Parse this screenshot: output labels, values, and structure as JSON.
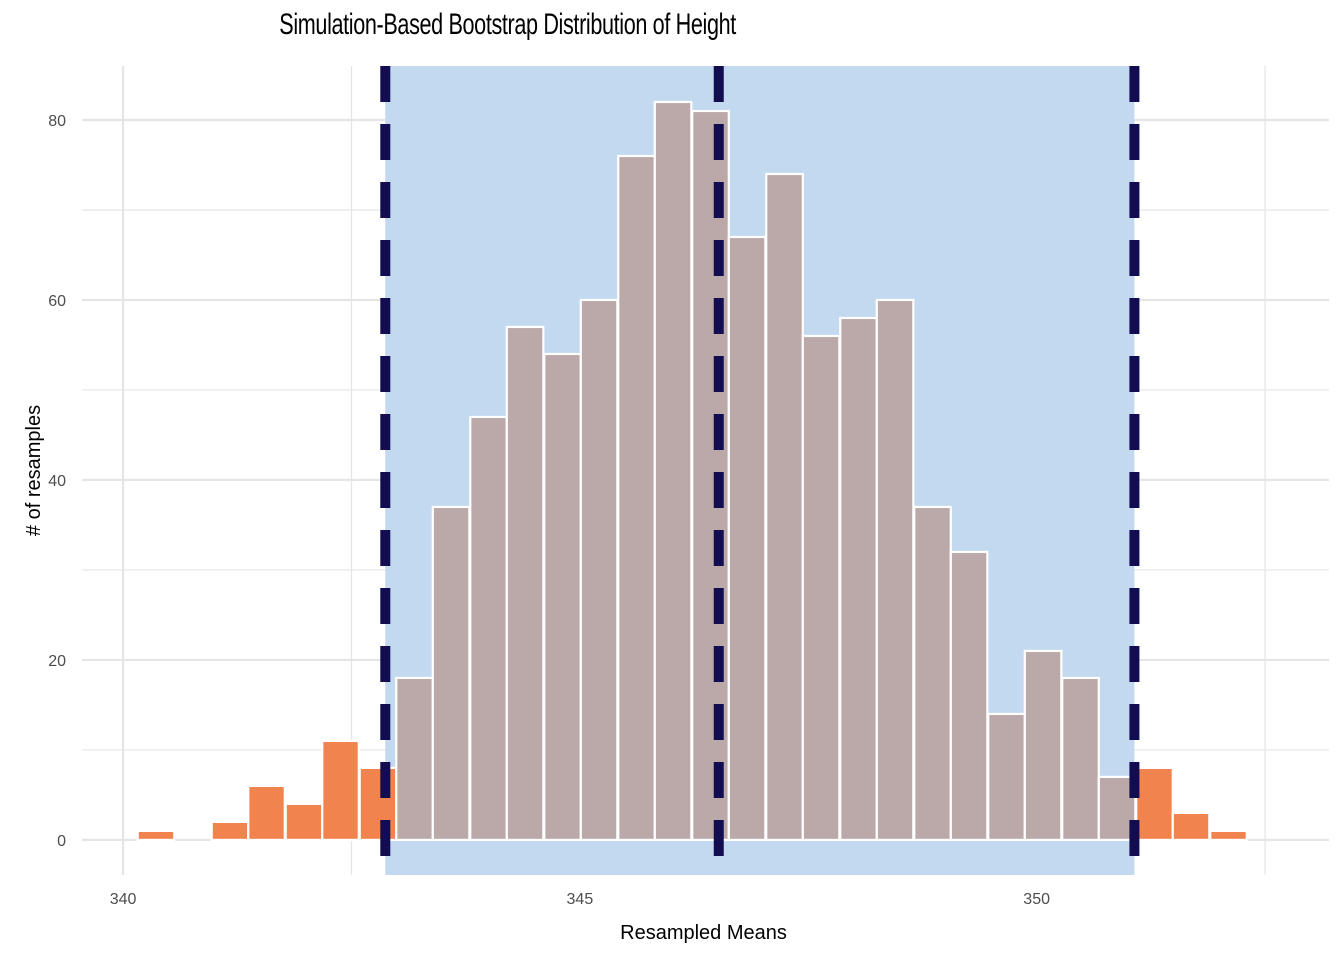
{
  "chart_data": {
    "type": "bar",
    "title": "Simulation-Based Bootstrap Distribution of Height",
    "xlabel": "Resampled Means",
    "ylabel": "# of resamples",
    "xlim": [
      339.55,
      353.2
    ],
    "ylim": [
      -3.9,
      86
    ],
    "x_ticks": [
      340,
      345,
      350
    ],
    "y_ticks": [
      0,
      20,
      40,
      60,
      80
    ],
    "grid": true,
    "bin_width": 0.4,
    "bins": {
      "centers": [
        340.36,
        340.76,
        341.17,
        341.57,
        341.98,
        342.38,
        342.79,
        343.19,
        343.59,
        344.0,
        344.4,
        344.81,
        345.21,
        345.62,
        346.02,
        346.43,
        346.83,
        347.24,
        347.64,
        348.05,
        348.45,
        348.86,
        349.26,
        349.67,
        350.07,
        350.48,
        350.88,
        351.29,
        351.69,
        352.1,
        352.5
      ],
      "counts": [
        1,
        0,
        2,
        6,
        4,
        11,
        8,
        18,
        37,
        47,
        57,
        54,
        60,
        76,
        82,
        81,
        67,
        74,
        56,
        58,
        60,
        37,
        32,
        14,
        21,
        18,
        7,
        8,
        3,
        1,
        0
      ]
    },
    "confidence_interval": {
      "lower": 342.87,
      "upper": 351.07,
      "mean": 346.52
    },
    "colors": {
      "bar_outside": "#F0834E",
      "bar_inside": "#BBA8A9",
      "ci_shade": "#C2D9F0",
      "ci_line": "#120D50",
      "grid": "#E5E5E5"
    }
  }
}
